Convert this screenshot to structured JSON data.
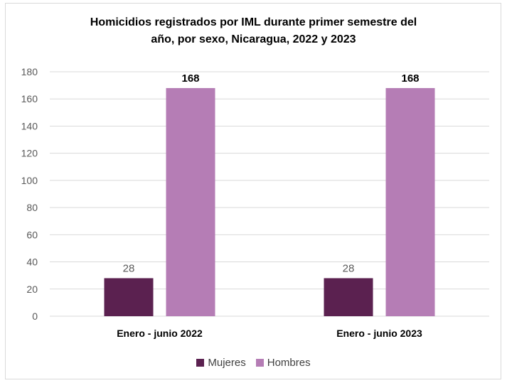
{
  "chart_data": {
    "type": "bar",
    "title_line1": "Homicidios registrados por IML durante primer semestre del",
    "title_line2": "año, por sexo, Nicaragua, 2022 y 2023",
    "categories": [
      "Enero - junio 2022",
      "Enero - junio 2023"
    ],
    "series": [
      {
        "name": "Mujeres",
        "values": [
          28,
          28
        ],
        "color": "#5b2150"
      },
      {
        "name": "Hombres",
        "values": [
          168,
          168
        ],
        "color": "#b57db5"
      }
    ],
    "ylim": [
      0,
      180
    ],
    "yticks": [
      "0",
      "20",
      "40",
      "60",
      "80",
      "100",
      "120",
      "140",
      "160",
      "180"
    ],
    "data_labels": [
      [
        "28",
        "28"
      ],
      [
        "168",
        "168"
      ]
    ],
    "grid": true,
    "legend_position": "bottom"
  }
}
